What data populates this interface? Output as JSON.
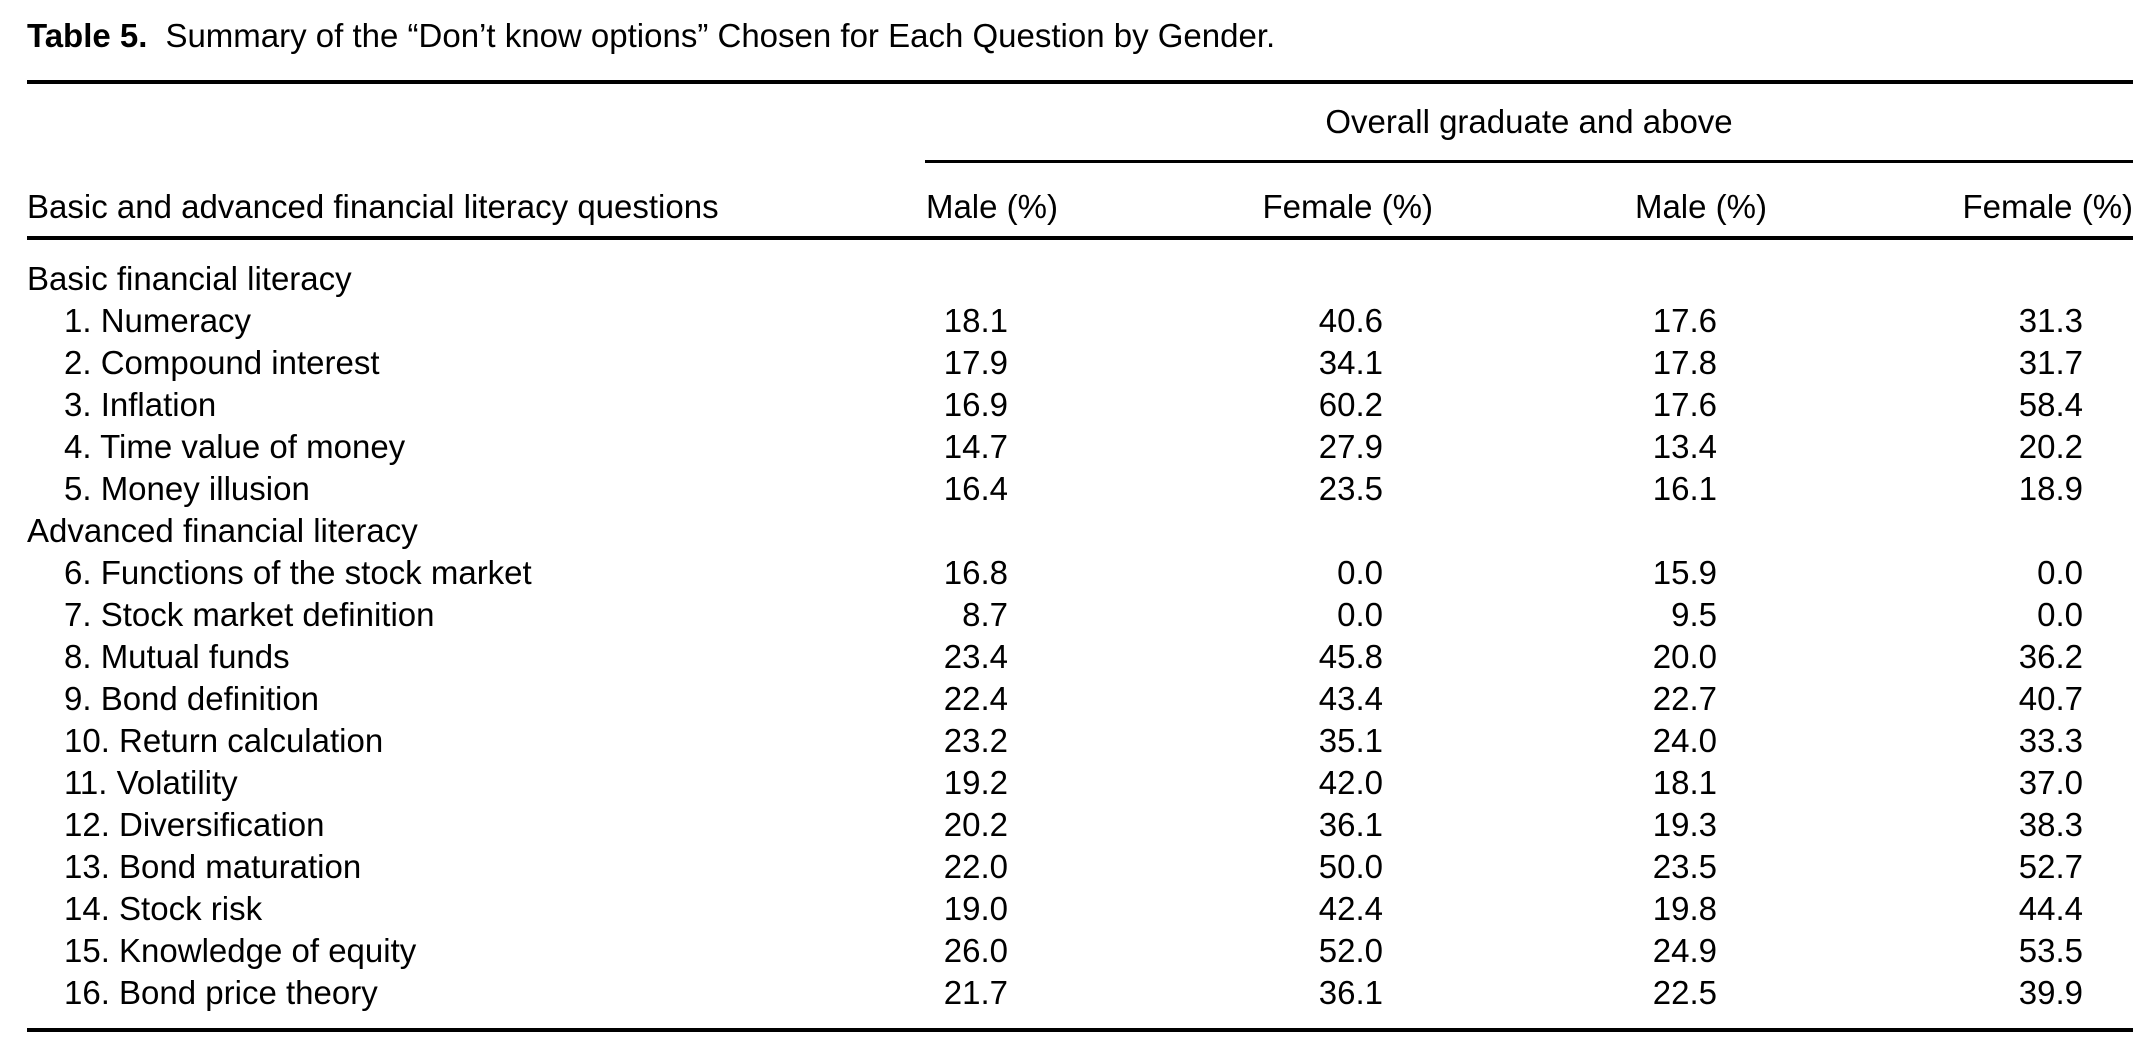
{
  "caption": {
    "label": "Table 5.",
    "text": "Summary of the “Don’t know options” Chosen for Each Question by Gender."
  },
  "table": {
    "stub_header": "Basic and advanced financial literacy questions",
    "spanner": "Overall graduate and above",
    "column_headers": [
      "Male (%)",
      "Female (%)",
      "Male (%)",
      "Female (%)"
    ],
    "sections": [
      {
        "label": "Basic financial literacy",
        "rows": [
          {
            "label": "1. Numeracy",
            "values": [
              "18.1",
              "40.6",
              "17.6",
              "31.3"
            ]
          },
          {
            "label": "2. Compound interest",
            "values": [
              "17.9",
              "34.1",
              "17.8",
              "31.7"
            ]
          },
          {
            "label": "3. Inflation",
            "values": [
              "16.9",
              "60.2",
              "17.6",
              "58.4"
            ]
          },
          {
            "label": "4. Time value of money",
            "values": [
              "14.7",
              "27.9",
              "13.4",
              "20.2"
            ]
          },
          {
            "label": "5. Money illusion",
            "values": [
              "16.4",
              "23.5",
              "16.1",
              "18.9"
            ]
          }
        ]
      },
      {
        "label": "Advanced financial literacy",
        "rows": [
          {
            "label": "6. Functions of the stock market",
            "values": [
              "16.8",
              "0.0",
              "15.9",
              "0.0"
            ]
          },
          {
            "label": "7. Stock market definition",
            "values": [
              "8.7",
              "0.0",
              "9.5",
              "0.0"
            ]
          },
          {
            "label": "8. Mutual funds",
            "values": [
              "23.4",
              "45.8",
              "20.0",
              "36.2"
            ]
          },
          {
            "label": "9. Bond definition",
            "values": [
              "22.4",
              "43.4",
              "22.7",
              "40.7"
            ]
          },
          {
            "label": "10. Return calculation",
            "values": [
              "23.2",
              "35.1",
              "24.0",
              "33.3"
            ]
          },
          {
            "label": "11. Volatility",
            "values": [
              "19.2",
              "42.0",
              "18.1",
              "37.0"
            ]
          },
          {
            "label": "12. Diversification",
            "values": [
              "20.2",
              "36.1",
              "19.3",
              "38.3"
            ]
          },
          {
            "label": "13. Bond maturation",
            "values": [
              "22.0",
              "50.0",
              "23.5",
              "52.7"
            ]
          },
          {
            "label": "14. Stock risk",
            "values": [
              "19.0",
              "42.4",
              "19.8",
              "44.4"
            ]
          },
          {
            "label": "15. Knowledge of equity",
            "values": [
              "26.0",
              "52.0",
              "24.9",
              "53.5"
            ]
          },
          {
            "label": "16. Bond price theory",
            "values": [
              "21.7",
              "36.1",
              "22.5",
              "39.9"
            ]
          }
        ]
      }
    ]
  }
}
